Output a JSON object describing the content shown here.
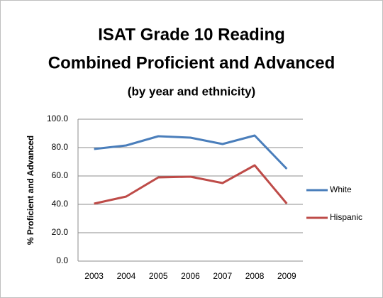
{
  "chart_data": {
    "type": "line",
    "title": [
      "ISAT Grade 10 Reading",
      "Combined Proficient and Advanced"
    ],
    "subtitle": "(by year and ethnicity)",
    "y_label": "% Proficient and Advanced",
    "categories": [
      "2003",
      "2004",
      "2005",
      "2006",
      "2007",
      "2008",
      "2009"
    ],
    "series": [
      {
        "name": "White",
        "color": "#4a7ebb",
        "values": [
          79,
          81.5,
          88,
          87,
          82.5,
          88.5,
          65
        ]
      },
      {
        "name": "Hispanic",
        "color": "#be4b48",
        "values": [
          40.5,
          45.5,
          59,
          59.5,
          55,
          67.5,
          40.5
        ]
      }
    ],
    "ylim": [
      0,
      100
    ],
    "yticks": [
      {
        "value": 0,
        "label": "0.0"
      },
      {
        "value": 20,
        "label": "20.0"
      },
      {
        "value": 40,
        "label": "40.0"
      },
      {
        "value": 60,
        "label": "60.0"
      },
      {
        "value": 80,
        "label": "80.0"
      },
      {
        "value": 100,
        "label": "100.0"
      }
    ],
    "grid": true,
    "legend": "right"
  }
}
